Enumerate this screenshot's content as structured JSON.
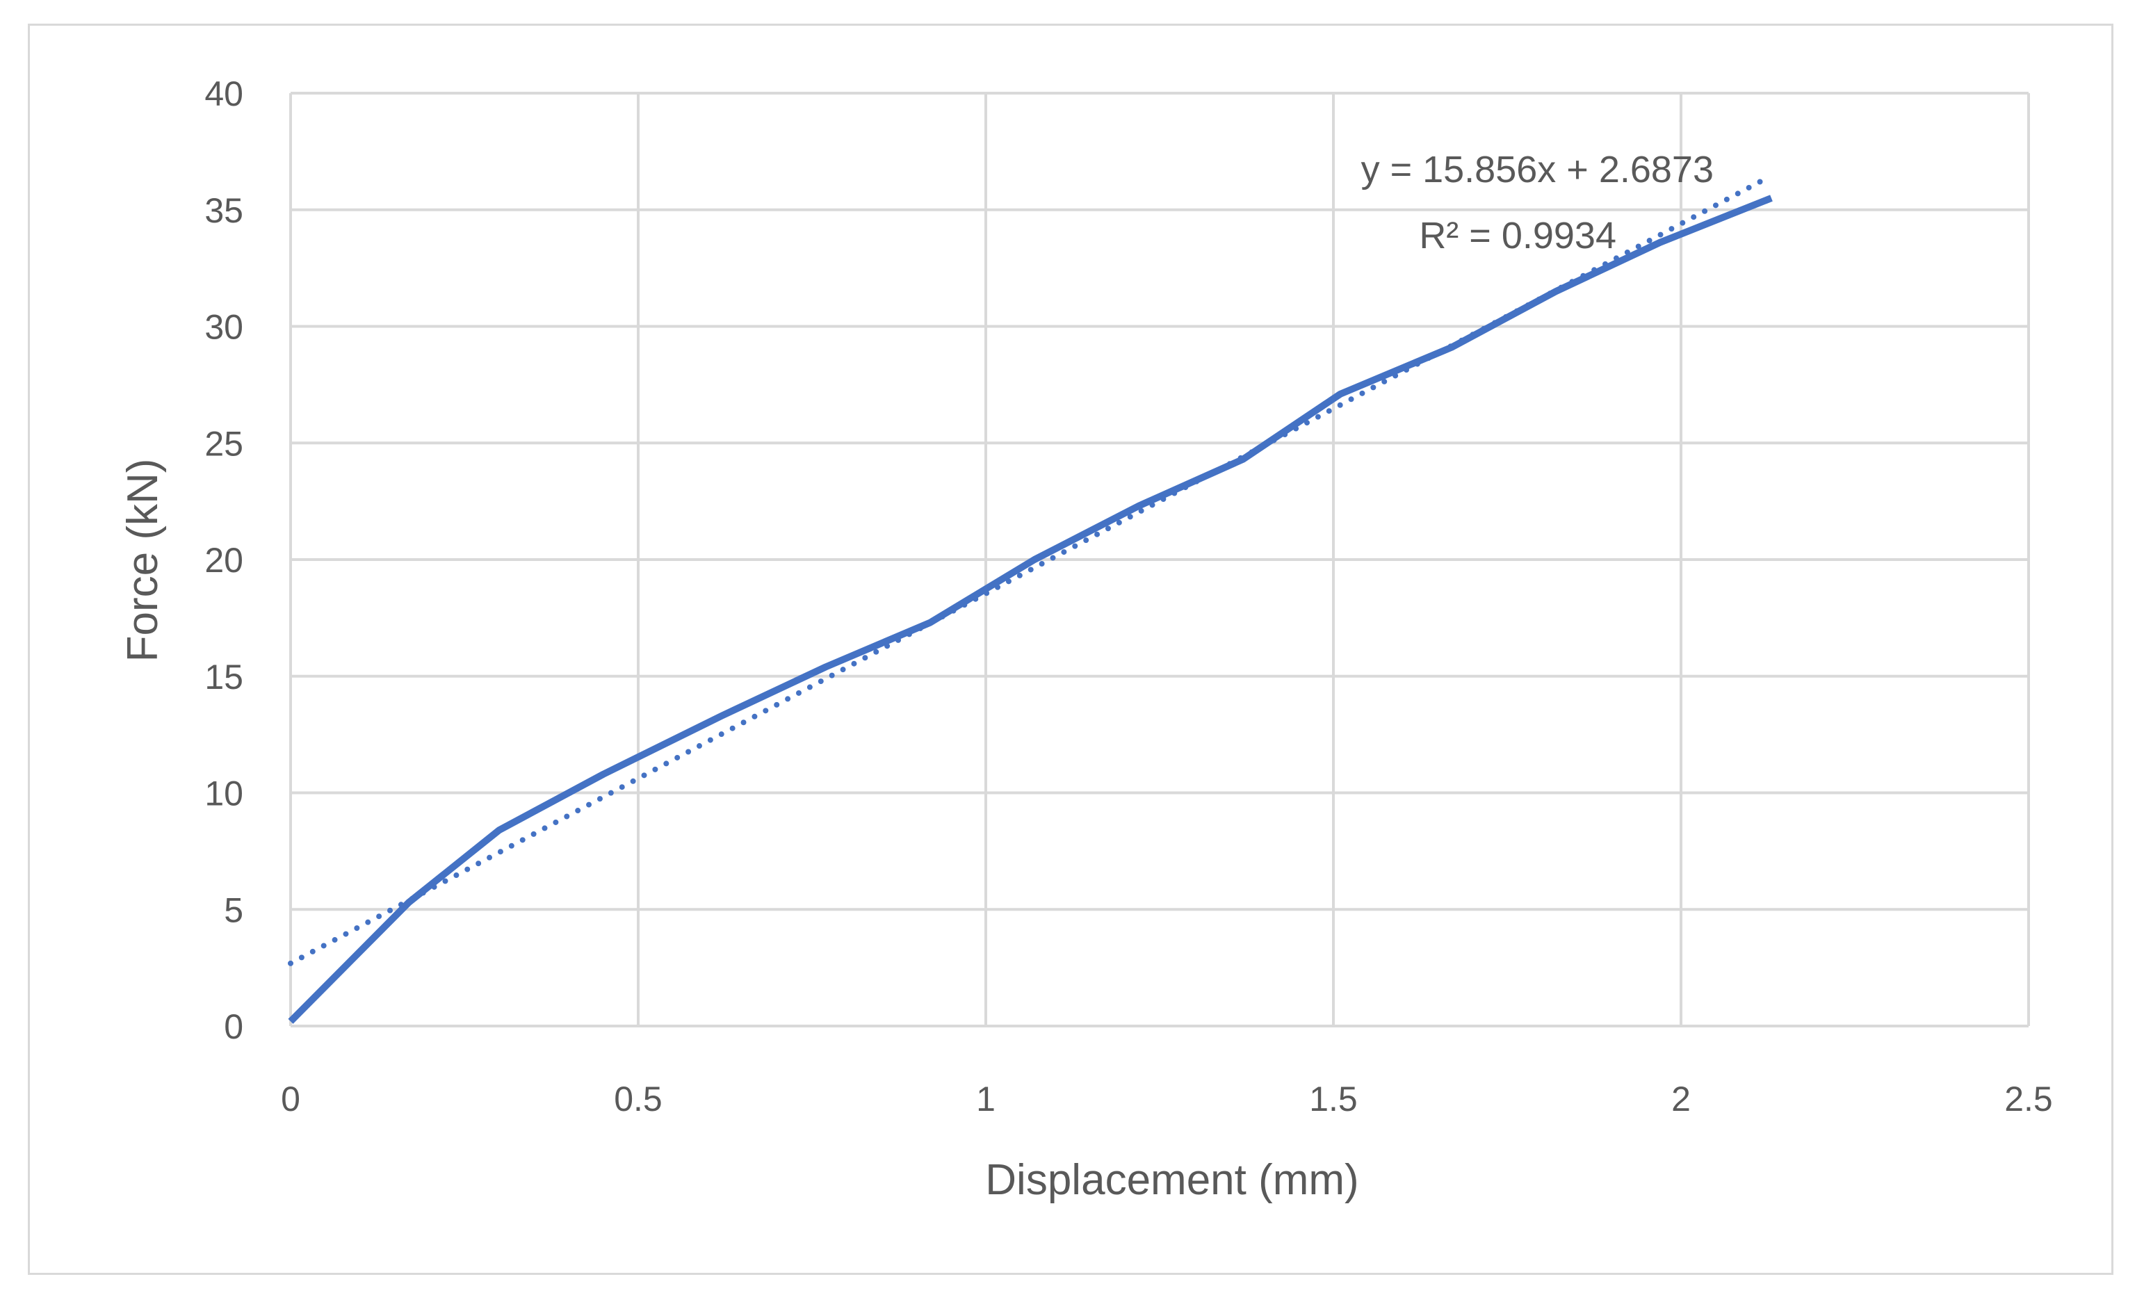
{
  "chart_data": {
    "type": "line",
    "title": "",
    "xlabel": "Displacement (mm)",
    "ylabel": "Force (kN)",
    "xlim": [
      0,
      2.5
    ],
    "ylim": [
      0,
      40
    ],
    "xticks": [
      "0",
      "0.5",
      "1",
      "1.5",
      "2",
      "2.5"
    ],
    "yticks": [
      "0",
      "5",
      "10",
      "15",
      "20",
      "25",
      "30",
      "35",
      "40"
    ],
    "grid": true,
    "legend": "none",
    "series": [
      {
        "x": [
          0,
          0.17,
          0.3,
          0.45,
          0.62,
          0.77,
          0.92,
          1.07,
          1.22,
          1.37,
          1.51,
          1.67,
          1.82,
          1.97,
          2.13
        ],
        "y": [
          0.2,
          5.3,
          8.4,
          10.8,
          13.3,
          15.4,
          17.3,
          20.0,
          22.3,
          24.3,
          27.1,
          29.1,
          31.5,
          33.6,
          35.5
        ],
        "color": "#4472c4",
        "style": "solid"
      }
    ],
    "trendline": {
      "type": "linear",
      "slope": 15.856,
      "intercept": 2.6873,
      "x_range": [
        0,
        2.12
      ],
      "color": "#4472c4",
      "style": "dotted",
      "equation_label": "y = 15.856x + 2.6873",
      "r2_label": "R² = 0.9934"
    }
  }
}
